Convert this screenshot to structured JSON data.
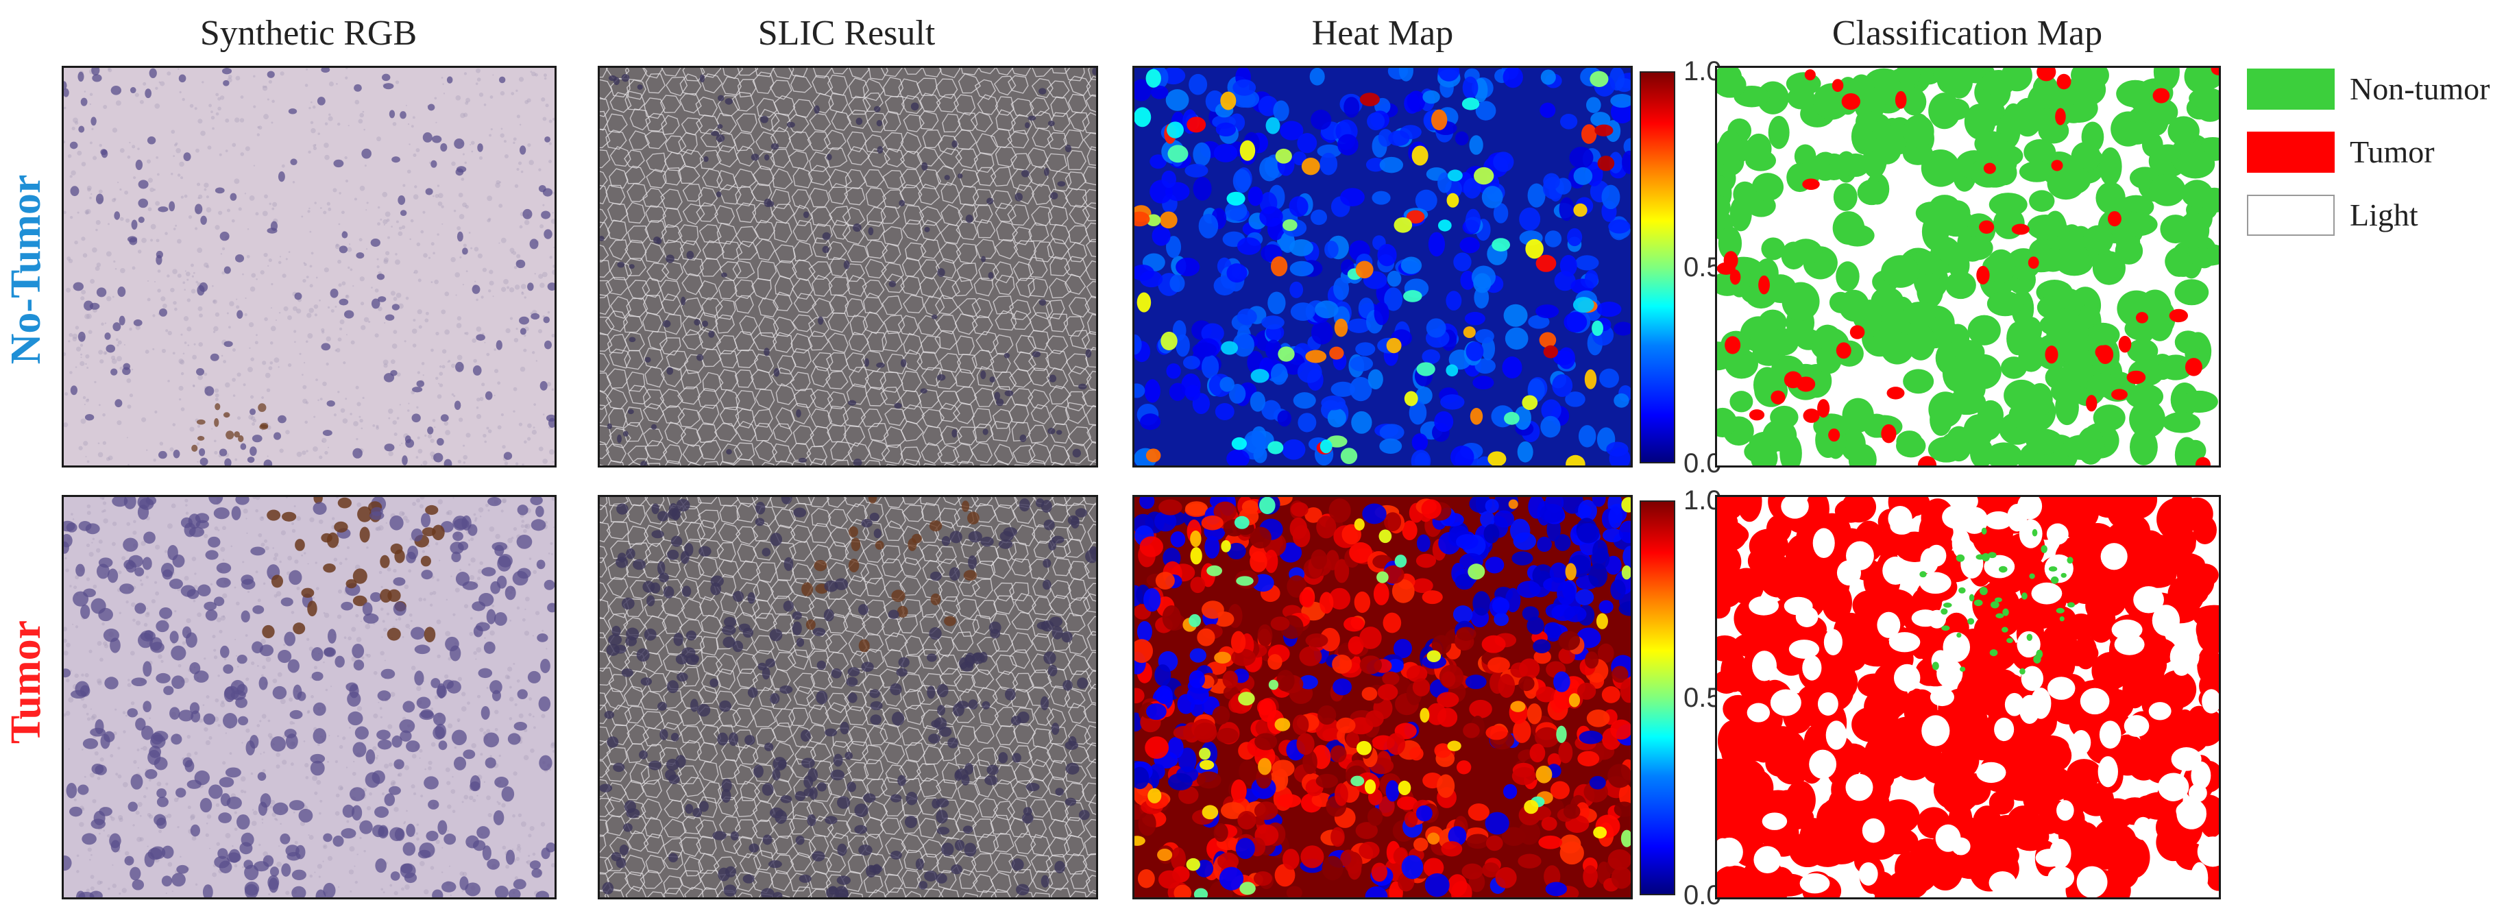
{
  "columns": {
    "synthetic_rgb": "Synthetic RGB",
    "slic_result": "SLIC Result",
    "heat_map": "Heat Map",
    "classification_map": "Classification Map"
  },
  "rows": {
    "no_tumor": {
      "label": "No-Tumor",
      "color": "#1f8fd6"
    },
    "tumor": {
      "label": "Tumor",
      "color": "#ff2020"
    }
  },
  "colorbar": {
    "max_label": "1.0",
    "mid_label": "0.5",
    "min_label": "0.0"
  },
  "legend": [
    {
      "label": "Non-tumor",
      "color": "#3ccf3c"
    },
    {
      "label": "Tumor",
      "color": "#ff0000"
    },
    {
      "label": "Light",
      "color": "#ffffff"
    }
  ],
  "colors": {
    "tissue_bg": "#d8cbd8",
    "nucleus": "#5a4f8c",
    "brown_stain": "#6b3a1e",
    "slic_bg": "#6f6a6c",
    "slic_boundary": "#e6e3e6",
    "heat_low": "#0a1a9c",
    "non_tumor": "#3ccf3c",
    "tumor": "#ff0000"
  }
}
